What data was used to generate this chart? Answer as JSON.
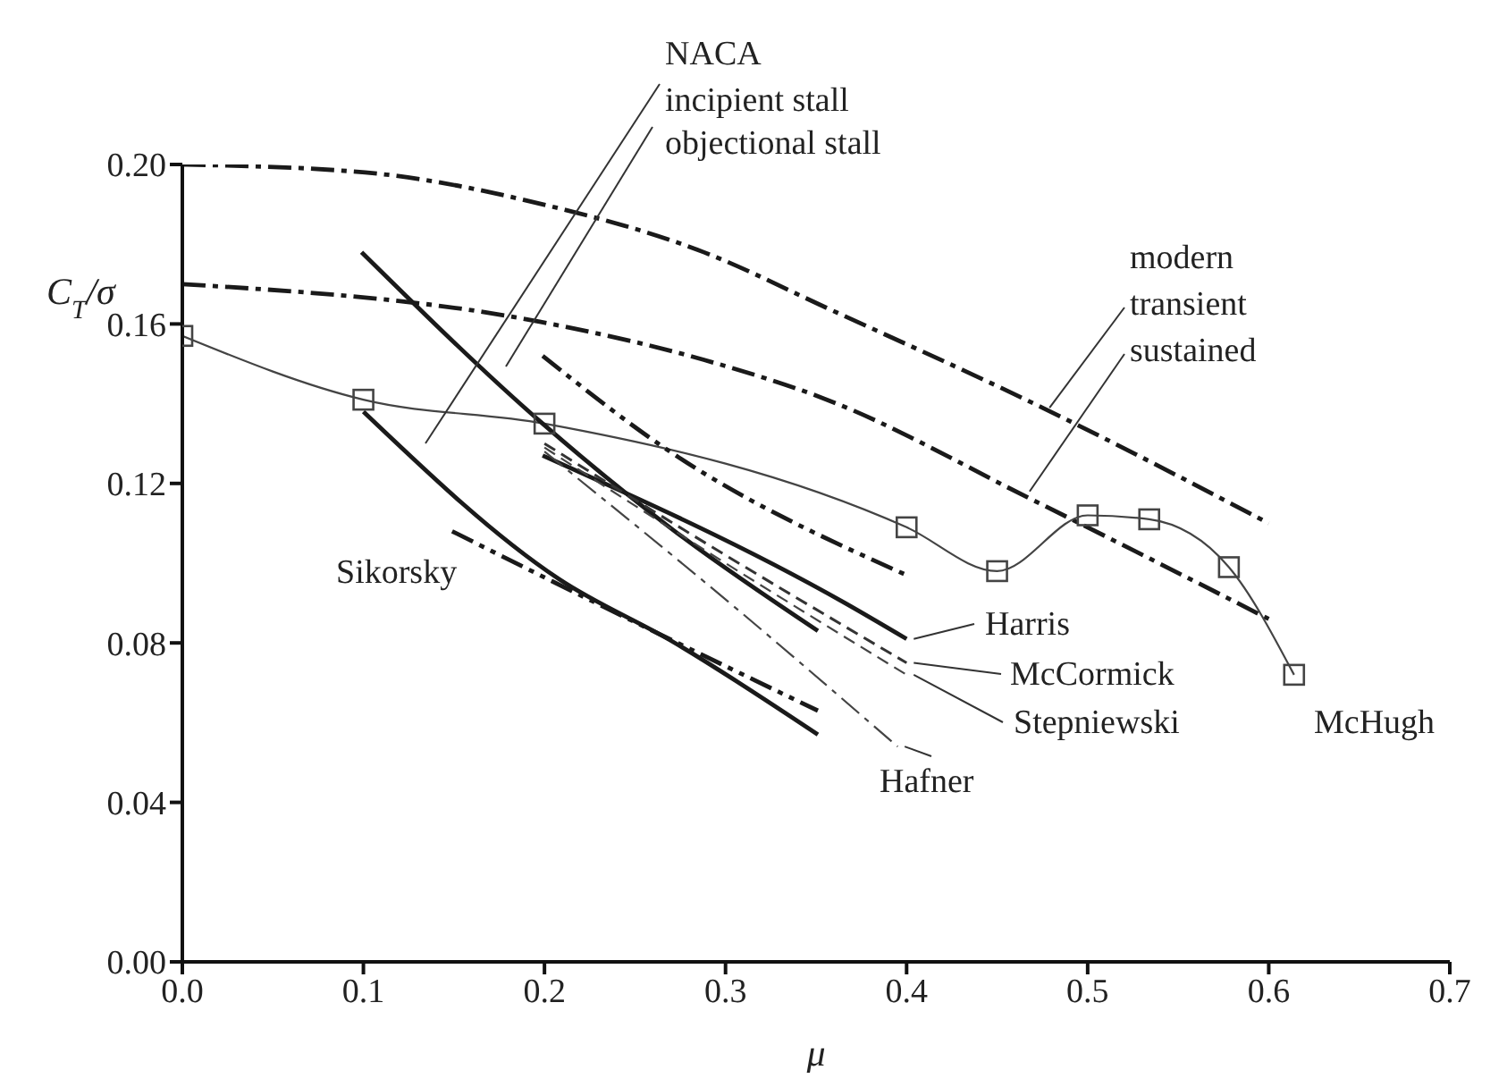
{
  "chart_data": {
    "type": "line",
    "xlabel": "μ",
    "ylabel": "C$_{T}$/σ",
    "xlim": [
      0,
      0.7
    ],
    "ylim": [
      0,
      0.2
    ],
    "xticks": [
      {
        "value": 0,
        "label": "0.0"
      },
      0.1,
      0.2,
      0.3,
      0.4,
      0.5,
      0.6,
      0.7
    ],
    "yticks": [
      {
        "value": 0,
        "label": "0.00"
      },
      0.04,
      0.08,
      0.12,
      0.16,
      {
        "value": 0.2,
        "label": "0.20"
      }
    ],
    "grid": false,
    "legend": false,
    "marker": "none",
    "series": [
      {
        "color": "#1a1a1a",
        "line_style": "dashdot",
        "x": [
          0,
          0.101,
          0.199,
          0.288,
          0.356,
          0.475,
          0.6
        ],
        "values": [
          0.2,
          0.198,
          0.19,
          0.178,
          0.164,
          0.139,
          0.11
        ]
      },
      {
        "color": "#1a1a1a",
        "line_style": "dashdot",
        "x": [
          0,
          0.198,
          0.288,
          0.356,
          0.469,
          0.6
        ],
        "values": [
          0.17,
          0.1605,
          0.151,
          0.141,
          0.116,
          0.086
        ]
      },
      {
        "color": "#444444",
        "line_style": "solid",
        "marker": "square",
        "x": [
          0,
          0.1,
          0.2,
          0.4,
          0.45,
          0.5,
          0.534,
          0.578,
          0.614
        ],
        "values": [
          0.157,
          0.141,
          0.135,
          0.109,
          0.098,
          0.112,
          0.111,
          0.099,
          0.072
        ]
      },
      {
        "color": "#1a1a1a",
        "line_style": "solid",
        "x": [
          0.099,
          0.199,
          0.272,
          0.351
        ],
        "values": [
          0.178,
          0.135,
          0.108,
          0.083
        ]
      },
      {
        "color": "#1a1a1a",
        "line_style": "solid",
        "x": [
          0.1,
          0.208,
          0.272,
          0.351
        ],
        "values": [
          0.138,
          0.096,
          0.08,
          0.057
        ]
      },
      {
        "color": "#1a1a1a",
        "line_style": "dashdotdot",
        "x": [
          0.149,
          0.233,
          0.351
        ],
        "values": [
          0.108,
          0.089,
          0.063
        ]
      },
      {
        "color": "#1a1a1a",
        "line_style": "dashdotdot",
        "x": [
          0.199,
          0.266,
          0.4
        ],
        "values": [
          0.152,
          0.129,
          0.097
        ]
      },
      {
        "color": "#1a1a1a",
        "line_style": "solid",
        "x": [
          0.199,
          0.366,
          0.4
        ],
        "values": [
          0.127,
          0.09,
          0.081
        ]
      },
      {
        "color": "#333333",
        "line_style": "dashed",
        "x": [
          0.2,
          0.3,
          0.4
        ],
        "values": [
          0.13,
          0.102,
          0.075
        ]
      },
      {
        "color": "#444444",
        "line_style": "dashed",
        "x": [
          0.2,
          0.3,
          0.4
        ],
        "values": [
          0.129,
          0.1,
          0.072
        ]
      },
      {
        "color": "#444444",
        "line_style": "dashdot",
        "x": [
          0.2,
          0.305,
          0.395
        ],
        "values": [
          0.128,
          0.089,
          0.054
        ]
      }
    ],
    "annotations": [
      "NACA",
      "incipient stall",
      "objectional stall",
      "modern",
      {
        "text": "transient",
        "x": 0.475,
        "y": 0.139
      },
      {
        "text": "sustained",
        "x": 0.464,
        "y": 0.118
      },
      "Sikorsky",
      {
        "text": "Harris",
        "x": 0.4,
        "y": 0.081
      },
      {
        "text": "McCormick",
        "x": 0.4,
        "y": 0.075
      },
      {
        "text": "Stepniewski",
        "x": 0.4,
        "y": 0.072
      },
      {
        "text": "Hafner",
        "x": 0.395,
        "y": 0.054
      },
      {
        "text": "McHugh",
        "x": 0.614,
        "y": 0.072
      }
    ]
  }
}
